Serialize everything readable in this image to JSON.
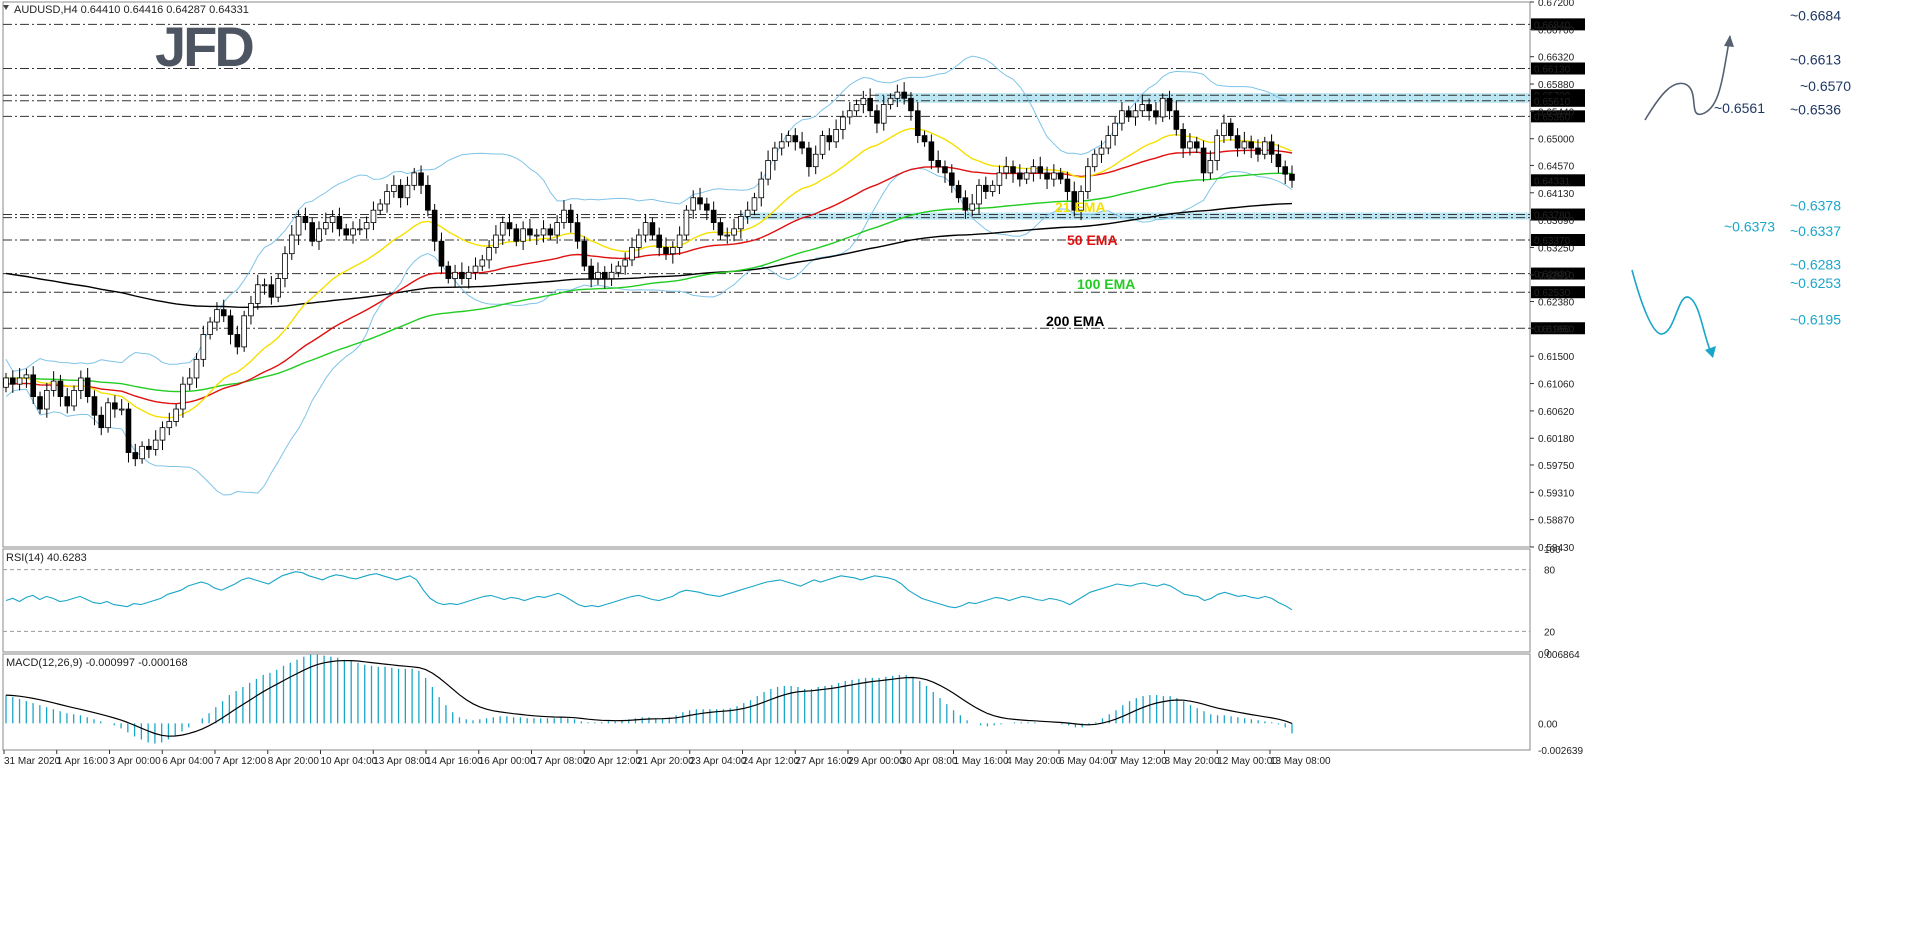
{
  "header": {
    "symbol_text": "AUDUSD,H4  0.64410 0.64416 0.64287 0.64331",
    "logo": "JFD"
  },
  "colors": {
    "bull_candle": "#ffffff",
    "bear_candle": "#000000",
    "ema21": "#f5e000",
    "ema50": "#e01010",
    "ema100": "#22cc22",
    "ema200": "#000000",
    "bollinger": "#7fc4e8",
    "resistance": "#1f3864",
    "support": "#1aa6c8",
    "zone": "#a9dff0",
    "rsi": "#1aa6c8",
    "macd_hist": "#1aa6c8",
    "macd_signal": "#000000"
  },
  "chart_data": [
    {
      "type": "candlestick",
      "title": "AUDUSD,H4",
      "ohlc_last": {
        "open": 0.6441,
        "high": 0.64416,
        "low": 0.64287,
        "close": 0.64331
      },
      "current_price": "0.64331",
      "ylim": [
        0.5843,
        0.672
      ],
      "y_ticks": [
        "0.67200",
        "0.66760",
        "0.66320",
        "0.65880",
        "0.65440",
        "0.65000",
        "0.64570",
        "0.64130",
        "0.63690",
        "0.63250",
        "0.62810",
        "0.62380",
        "0.61950",
        "0.61500",
        "0.61060",
        "0.60620",
        "0.60180",
        "0.59750",
        "0.59310",
        "0.58870",
        "0.58430"
      ],
      "x_ticks": [
        "31 Mar 2020",
        "1 Apr 16:00",
        "3 Apr 00:00",
        "6 Apr 04:00",
        "7 Apr 12:00",
        "8 Apr 20:00",
        "10 Apr 04:00",
        "13 Apr 08:00",
        "14 Apr 16:00",
        "16 Apr 00:00",
        "17 Apr 08:00",
        "20 Apr 12:00",
        "21 Apr 20:00",
        "23 Apr 04:00",
        "24 Apr 12:00",
        "27 Apr 16:00",
        "29 Apr 00:00",
        "30 Apr 08:00",
        "1 May 16:00",
        "4 May 20:00",
        "6 May 04:00",
        "7 May 12:00",
        "8 May 20:00",
        "12 May 00:00",
        "13 May 08:00"
      ],
      "levels": [
        {
          "value": 0.6684,
          "label": "~0.6684",
          "price_box": "0.66840",
          "type": "resistance"
        },
        {
          "value": 0.6613,
          "label": "~0.6613",
          "price_box": "0.66130",
          "type": "resistance"
        },
        {
          "value": 0.657,
          "label": "~0.6570",
          "price_box": "0.65700",
          "type": "resistance"
        },
        {
          "value": 0.6561,
          "label": "~0.6561",
          "price_box": "0.65610",
          "type": "resistance"
        },
        {
          "value": 0.6536,
          "label": "~0.6536",
          "price_box": "0.65360",
          "type": "resistance"
        },
        {
          "value": 0.6378,
          "label": "~0.6378",
          "price_box": "0.63780",
          "type": "support"
        },
        {
          "value": 0.6373,
          "label": "~0.6373",
          "price_box": "",
          "type": "support"
        },
        {
          "value": 0.6337,
          "label": "~0.6337",
          "price_box": "0.63370",
          "type": "support"
        },
        {
          "value": 0.6283,
          "label": "~0.6283",
          "price_box": "0.62830",
          "type": "support"
        },
        {
          "value": 0.6253,
          "label": "~0.6253",
          "price_box": "0.62530",
          "type": "support"
        },
        {
          "value": 0.6195,
          "label": "~0.6195",
          "price_box": "0.61950",
          "type": "support"
        }
      ],
      "zones": [
        [
          0.6561,
          0.657
        ],
        [
          0.6373,
          0.6378
        ]
      ],
      "ema_labels": [
        {
          "name": "21 EMA",
          "color_key": "ema21"
        },
        {
          "name": "50 EMA",
          "color_key": "ema50"
        },
        {
          "name": "100 EMA",
          "color_key": "ema100"
        },
        {
          "name": "200 EMA",
          "color_key": "ema200"
        }
      ],
      "close_series": [
        0.6115,
        0.6105,
        0.6115,
        0.612,
        0.6085,
        0.6065,
        0.6095,
        0.611,
        0.6085,
        0.607,
        0.6095,
        0.6115,
        0.6085,
        0.6055,
        0.6035,
        0.6075,
        0.6065,
        0.6065,
        0.5995,
        0.5985,
        0.6005,
        0.6,
        0.6015,
        0.6035,
        0.6045,
        0.6065,
        0.6105,
        0.6115,
        0.6145,
        0.6185,
        0.6205,
        0.6225,
        0.6215,
        0.6185,
        0.6165,
        0.6215,
        0.6235,
        0.6265,
        0.6265,
        0.6245,
        0.6275,
        0.6315,
        0.6345,
        0.6375,
        0.6365,
        0.6335,
        0.6355,
        0.6365,
        0.6375,
        0.6355,
        0.6345,
        0.6355,
        0.6355,
        0.6365,
        0.6385,
        0.6395,
        0.6415,
        0.6425,
        0.6405,
        0.6425,
        0.6445,
        0.6425,
        0.6385,
        0.6335,
        0.6295,
        0.6275,
        0.6285,
        0.6275,
        0.6285,
        0.6295,
        0.6305,
        0.6325,
        0.6345,
        0.6365,
        0.6355,
        0.6335,
        0.6355,
        0.6345,
        0.6345,
        0.6355,
        0.6345,
        0.6365,
        0.6385,
        0.6365,
        0.6335,
        0.6295,
        0.6275,
        0.6285,
        0.6275,
        0.6285,
        0.6295,
        0.6305,
        0.6325,
        0.6345,
        0.6365,
        0.6345,
        0.6325,
        0.6315,
        0.6325,
        0.6345,
        0.6385,
        0.6405,
        0.6395,
        0.6385,
        0.6365,
        0.6345,
        0.6345,
        0.6355,
        0.6375,
        0.6385,
        0.6405,
        0.6435,
        0.6465,
        0.6485,
        0.6495,
        0.6505,
        0.6495,
        0.6485,
        0.6455,
        0.6475,
        0.6505,
        0.6495,
        0.6515,
        0.6535,
        0.6545,
        0.6555,
        0.6565,
        0.6545,
        0.6525,
        0.6555,
        0.6565,
        0.6575,
        0.6565,
        0.6545,
        0.6505,
        0.6495,
        0.6465,
        0.6455,
        0.6445,
        0.6425,
        0.6405,
        0.6385,
        0.6395,
        0.6425,
        0.6415,
        0.6425,
        0.6445,
        0.6455,
        0.6445,
        0.6435,
        0.6445,
        0.6455,
        0.6445,
        0.6435,
        0.6445,
        0.6435,
        0.6415,
        0.6385,
        0.6415,
        0.6455,
        0.6475,
        0.6485,
        0.6505,
        0.6525,
        0.6545,
        0.6535,
        0.6545,
        0.6555,
        0.6545,
        0.6535,
        0.6565,
        0.6545,
        0.6515,
        0.6485,
        0.6495,
        0.6485,
        0.6445,
        0.6465,
        0.6505,
        0.6525,
        0.6505,
        0.6485,
        0.6495,
        0.6485,
        0.6475,
        0.6495,
        0.6475,
        0.6455,
        0.6443,
        0.6433
      ]
    },
    {
      "type": "line",
      "title": "RSI(14) 40.6283",
      "ylim": [
        0,
        100
      ],
      "y_ticks": [
        "100",
        "80",
        "20",
        "0"
      ],
      "guides": [
        80,
        20
      ],
      "values": [
        50,
        52,
        49,
        53,
        55,
        51,
        54,
        52,
        49,
        50,
        52,
        54,
        51,
        48,
        47,
        49,
        46,
        45,
        44,
        47,
        46,
        48,
        50,
        52,
        56,
        58,
        60,
        64,
        66,
        68,
        66,
        62,
        60,
        63,
        66,
        70,
        72,
        70,
        68,
        66,
        70,
        74,
        76,
        78,
        77,
        74,
        72,
        70,
        73,
        75,
        74,
        72,
        71,
        73,
        75,
        76,
        74,
        72,
        70,
        72,
        74,
        70,
        60,
        52,
        48,
        46,
        47,
        46,
        48,
        50,
        52,
        54,
        55,
        53,
        51,
        53,
        52,
        50,
        52,
        54,
        53,
        55,
        57,
        54,
        50,
        46,
        44,
        45,
        44,
        46,
        48,
        50,
        52,
        54,
        55,
        53,
        51,
        50,
        52,
        54,
        58,
        60,
        59,
        58,
        56,
        55,
        54,
        56,
        58,
        60,
        62,
        64,
        66,
        68,
        69,
        70,
        68,
        66,
        64,
        67,
        70,
        68,
        70,
        72,
        74,
        73,
        72,
        70,
        72,
        74,
        73,
        72,
        70,
        66,
        60,
        56,
        52,
        50,
        48,
        46,
        44,
        43,
        45,
        48,
        47,
        49,
        51,
        53,
        52,
        50,
        52,
        54,
        53,
        51,
        50,
        52,
        51,
        49,
        46,
        50,
        54,
        58,
        60,
        62,
        64,
        66,
        65,
        64,
        66,
        67,
        65,
        64,
        66,
        64,
        60,
        56,
        55,
        54,
        50,
        52,
        56,
        58,
        56,
        54,
        55,
        53,
        52,
        54,
        52,
        48,
        45,
        41
      ]
    },
    {
      "type": "bar",
      "title": "MACD(12,26,9) -0.000997 -0.000168",
      "ylim": [
        -0.002639,
        0.006864
      ],
      "y_ticks": [
        "0.006864",
        "0.00",
        "-0.002639"
      ],
      "histogram": [
        0.0028,
        0.0026,
        0.0024,
        0.0022,
        0.002,
        0.0018,
        0.0016,
        0.0014,
        0.0012,
        0.001,
        0.0009,
        0.0008,
        0.0006,
        0.0004,
        0.0002,
        0.0,
        -0.0002,
        -0.0005,
        -0.0009,
        -0.0013,
        -0.0016,
        -0.0019,
        -0.002,
        -0.0019,
        -0.0016,
        -0.0012,
        -0.0008,
        -0.0004,
        0.0,
        0.0005,
        0.001,
        0.0016,
        0.0022,
        0.0028,
        0.0032,
        0.0036,
        0.004,
        0.0044,
        0.0048,
        0.005,
        0.0053,
        0.0057,
        0.006,
        0.0063,
        0.0066,
        0.0068,
        0.0068,
        0.0067,
        0.0066,
        0.0065,
        0.0063,
        0.0062,
        0.006,
        0.0058,
        0.0057,
        0.0056,
        0.0056,
        0.0055,
        0.0054,
        0.0054,
        0.0054,
        0.0052,
        0.0045,
        0.0036,
        0.0026,
        0.0018,
        0.0011,
        0.0006,
        0.0004,
        0.0003,
        0.0004,
        0.0005,
        0.0006,
        0.0007,
        0.0007,
        0.0006,
        0.0006,
        0.0005,
        0.0005,
        0.0005,
        0.0005,
        0.0005,
        0.0006,
        0.0005,
        0.0004,
        0.0002,
        0.0001,
        0.0001,
        0.0001,
        0.0002,
        0.0002,
        0.0003,
        0.0004,
        0.0005,
        0.0006,
        0.0006,
        0.0005,
        0.0005,
        0.0006,
        0.0008,
        0.0011,
        0.0013,
        0.0014,
        0.0014,
        0.0014,
        0.0014,
        0.0014,
        0.0015,
        0.0017,
        0.002,
        0.0023,
        0.0027,
        0.0031,
        0.0034,
        0.0036,
        0.0037,
        0.0037,
        0.0036,
        0.0034,
        0.0034,
        0.0036,
        0.0037,
        0.0038,
        0.004,
        0.0042,
        0.0043,
        0.0044,
        0.0045,
        0.0045,
        0.0045,
        0.0046,
        0.0047,
        0.0048,
        0.0048,
        0.0046,
        0.0042,
        0.0037,
        0.0031,
        0.0025,
        0.0019,
        0.0013,
        0.0008,
        0.0003,
        0.0,
        -0.0002,
        -0.0003,
        -0.0002,
        -0.0001,
        0.0,
        0.0001,
        0.0001,
        0.0001,
        0.0001,
        0.0,
        0.0,
        0.0,
        -0.0001,
        -0.0002,
        -0.0004,
        -0.0004,
        -0.0002,
        0.0001,
        0.0005,
        0.0009,
        0.0013,
        0.0018,
        0.0022,
        0.0025,
        0.0027,
        0.0028,
        0.0028,
        0.0027,
        0.0027,
        0.0025,
        0.0022,
        0.0018,
        0.0015,
        0.0012,
        0.0009,
        0.0008,
        0.0008,
        0.0007,
        0.0006,
        0.0005,
        0.0004,
        0.0003,
        0.0002,
        0.0001,
        -0.0001,
        -0.0004,
        -0.001
      ]
    }
  ]
}
